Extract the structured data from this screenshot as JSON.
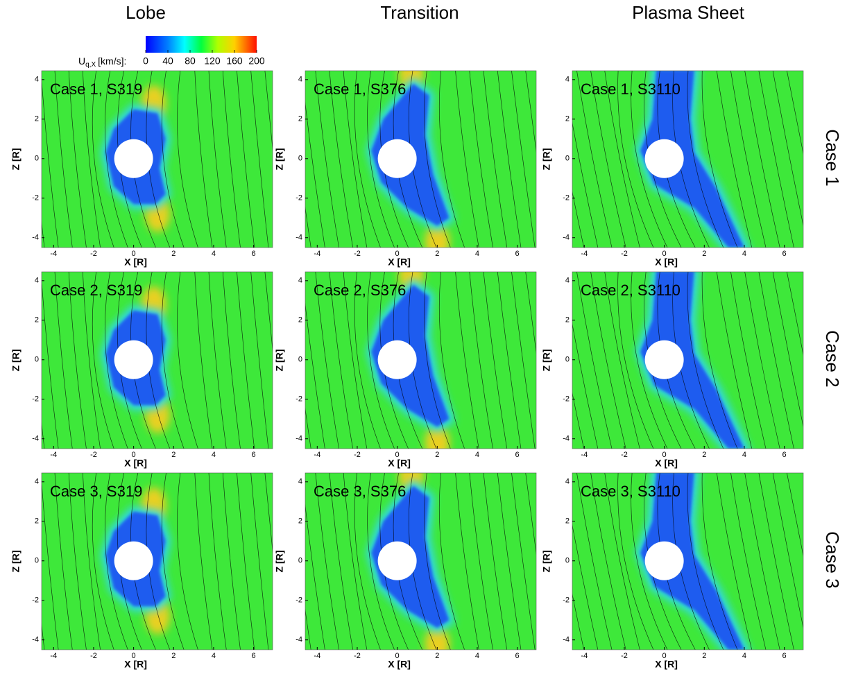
{
  "columns": [
    "Lobe",
    "Transition",
    "Plasma Sheet"
  ],
  "rows": [
    "Case 1",
    "Case 2",
    "Case 3"
  ],
  "panels": [
    [
      "Case 1, S319",
      "Case 1, S376",
      "Case 1, S3110"
    ],
    [
      "Case 2, S319",
      "Case 2, S376",
      "Case 2, S3110"
    ],
    [
      "Case 3, S319",
      "Case 3, S376",
      "Case 3, S3110"
    ]
  ],
  "colorbar": {
    "label": "U",
    "label_sub": "q,X",
    "label_unit": "[km/s]:",
    "lim": [
      0,
      200
    ],
    "ticks": [
      0,
      40,
      80,
      120,
      160,
      200
    ]
  },
  "x_axis": {
    "label": "X [R]",
    "lim": [
      -4.6,
      6.95
    ],
    "ticks": [
      -4,
      -2,
      0,
      2,
      4,
      6
    ]
  },
  "y_axis": {
    "label": "Z [R]",
    "lim": [
      -4.5,
      4.45
    ],
    "ticks": [
      -4,
      -2,
      0,
      2,
      4
    ]
  }
}
